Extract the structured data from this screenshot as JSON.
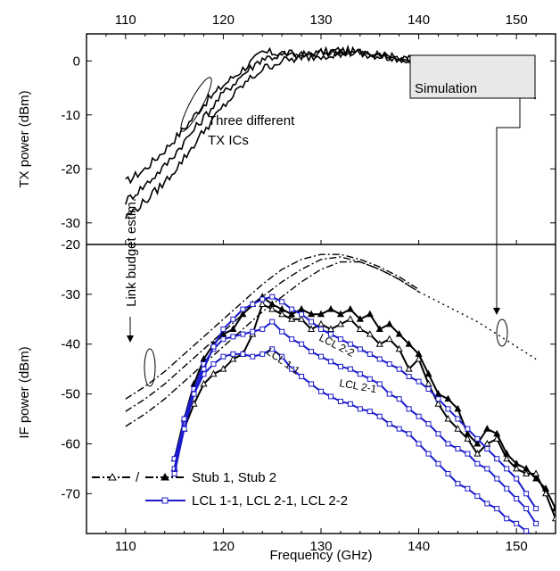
{
  "chart_data": [
    {
      "type": "line",
      "panel": "top",
      "ylabel": "TX power (dBm)",
      "xlim": [
        106,
        154
      ],
      "ylim": [
        -34,
        5
      ],
      "x_ticks": [
        "110",
        "120",
        "130",
        "140",
        "150"
      ],
      "y_ticks": [
        "0",
        "-10",
        "-20",
        "-30"
      ],
      "series": [
        {
          "x": [
            110,
            112,
            114,
            116,
            118,
            120,
            122,
            124,
            126,
            128,
            130,
            132,
            134,
            136,
            138,
            140
          ],
          "values": [
            -22.5,
            -20,
            -16.5,
            -12.5,
            -8,
            -4.5,
            -1.5,
            1.5,
            1.5,
            1,
            1.5,
            2,
            1.5,
            1,
            0.5,
            0
          ]
        },
        {
          "x": [
            110,
            112,
            114,
            116,
            118,
            120,
            122,
            124,
            126,
            128,
            130,
            132,
            134,
            136,
            138,
            140
          ],
          "values": [
            -26,
            -23,
            -19.5,
            -15,
            -10.5,
            -6,
            -2.5,
            0.5,
            1,
            1,
            1.5,
            1.5,
            1.5,
            1,
            0.5,
            0
          ]
        },
        {
          "x": [
            110,
            112,
            114,
            116,
            118,
            120,
            122,
            124,
            126,
            128,
            130,
            132,
            134,
            136,
            138,
            140
          ],
          "values": [
            -29,
            -26,
            -22.5,
            -18,
            -13,
            -8.5,
            -4.5,
            -1.5,
            0,
            0.5,
            1,
            1.5,
            1.5,
            1,
            0.5,
            0
          ]
        },
        {
          "style": "dashed",
          "x": [
            140,
            142,
            144,
            146,
            148,
            150,
            152
          ],
          "values": [
            0,
            -1,
            -2,
            -3,
            -4.3,
            -5.5,
            -7
          ]
        }
      ],
      "annotations": {
        "tx_ics_line1": "Three different",
        "tx_ics_line2": "TX ICs",
        "simulation": "Simulation"
      }
    },
    {
      "type": "line",
      "panel": "bottom",
      "xlabel": "Frequency (GHz)",
      "ylabel": "IF power (dBm)",
      "xlim": [
        106,
        154
      ],
      "ylim": [
        -78,
        -20
      ],
      "x_ticks": [
        "110",
        "120",
        "130",
        "140",
        "150"
      ],
      "y_ticks": [
        "-20",
        "-30",
        "-40",
        "-50",
        "-60",
        "-70"
      ],
      "link_budget": [
        {
          "x": [
            110,
            112,
            114,
            116,
            118,
            120,
            122,
            124,
            126,
            128,
            130,
            132,
            134,
            136,
            138,
            140
          ],
          "values": [
            -51,
            -48.5,
            -45.5,
            -42,
            -38.5,
            -35,
            -31.5,
            -28,
            -25,
            -23,
            -22,
            -22,
            -23,
            -24.5,
            -26.5,
            -29
          ]
        },
        {
          "x": [
            110,
            112,
            114,
            116,
            118,
            120,
            122,
            124,
            126,
            128,
            130,
            132,
            134,
            136,
            138,
            140
          ],
          "values": [
            -53.5,
            -51,
            -48,
            -44.5,
            -41,
            -37.5,
            -34,
            -30.5,
            -27.5,
            -25,
            -23,
            -22.5,
            -23.5,
            -25,
            -27,
            -29.5
          ]
        },
        {
          "x": [
            110,
            112,
            114,
            116,
            118,
            120,
            122,
            124,
            126,
            128,
            130,
            132,
            134,
            136,
            138,
            140
          ],
          "values": [
            -56.5,
            -54,
            -51,
            -47.5,
            -44,
            -40.5,
            -37,
            -33.5,
            -30.5,
            -27.5,
            -25,
            -23.5,
            -23.5,
            -25,
            -27,
            -29.5
          ]
        }
      ],
      "link_budget_sim": {
        "x": [
          140,
          142,
          144,
          146,
          148,
          150,
          152
        ],
        "values": [
          -29.5,
          -31.5,
          -33.5,
          -35.5,
          -38,
          -40.5,
          -43
        ]
      },
      "series": [
        {
          "name": "Stub 1, Stub 2",
          "marker": "triangle-open",
          "color": "#000000",
          "x": [
            115,
            116,
            117,
            118,
            119,
            120,
            121,
            122,
            123,
            124,
            125,
            126,
            127,
            128,
            129,
            130,
            131,
            132,
            133,
            134,
            135,
            136,
            137,
            138,
            139,
            140,
            141,
            142,
            143,
            144,
            145,
            146,
            147,
            148,
            149,
            150,
            151,
            152,
            153,
            154
          ],
          "values": [
            -65,
            -57,
            -52,
            -48,
            -46,
            -45,
            -43,
            -42,
            -38,
            -32,
            -33,
            -34,
            -35,
            -35,
            -37,
            -36,
            -37,
            -36,
            -35,
            -37,
            -38,
            -40,
            -39,
            -41,
            -45,
            -43,
            -48,
            -52,
            -55,
            -57,
            -59,
            -62,
            -60,
            -59,
            -63,
            -65,
            -66,
            -66,
            -70,
            -75
          ]
        },
        {
          "name": "Stub 1, Stub 2",
          "marker": "triangle-filled",
          "color": "#000000",
          "x": [
            115,
            116,
            117,
            118,
            119,
            120,
            121,
            122,
            123,
            124,
            125,
            126,
            127,
            128,
            129,
            130,
            131,
            132,
            133,
            134,
            135,
            136,
            137,
            138,
            139,
            140,
            141,
            142,
            143,
            144,
            145,
            146,
            147,
            148,
            149,
            150,
            151,
            152,
            153,
            154
          ],
          "values": [
            -63,
            -55,
            -48,
            -43,
            -40,
            -38,
            -37,
            -34,
            -32,
            -30.5,
            -32,
            -33,
            -34,
            -33,
            -34,
            -34,
            -33,
            -34,
            -33,
            -35,
            -34,
            -37,
            -36,
            -38,
            -40,
            -42,
            -46,
            -50,
            -51,
            -53,
            -58,
            -60,
            -57,
            -58,
            -62,
            -64,
            -65,
            -67,
            -69,
            -73
          ]
        },
        {
          "name": "LCL 1-1, LCL 2-1, LCL 2-2",
          "marker": "square-open",
          "color": "#1a1acc",
          "x": [
            115,
            116,
            117,
            118,
            119,
            120,
            121,
            122,
            123,
            124,
            125,
            126,
            127,
            128,
            129,
            130,
            131,
            132,
            133,
            134,
            135,
            136,
            137,
            138,
            139,
            140,
            141,
            142,
            143,
            144,
            145,
            146,
            147,
            148,
            149,
            150,
            151,
            152
          ],
          "values": [
            -63,
            -56,
            -50,
            -46,
            -44,
            -42.5,
            -42,
            -42,
            -42.5,
            -42,
            -41,
            -42.5,
            -45,
            -46.5,
            -48,
            -49.5,
            -50.5,
            -51.5,
            -52,
            -53,
            -53.5,
            -54.5,
            -56,
            -57,
            -58,
            -60,
            -62,
            -64,
            -66,
            -68,
            -69,
            -70.5,
            -72,
            -73,
            -75,
            -76,
            -77.5,
            -79
          ]
        },
        {
          "name": "LCL 1-1, LCL 2-1, LCL 2-2",
          "marker": "square-open",
          "color": "#1a1acc",
          "x": [
            115,
            116,
            117,
            118,
            119,
            120,
            121,
            122,
            123,
            124,
            125,
            126,
            127,
            128,
            129,
            130,
            131,
            132,
            133,
            134,
            135,
            136,
            137,
            138,
            139,
            140,
            141,
            142,
            143,
            144,
            145,
            146,
            147,
            148,
            149,
            150,
            151,
            152
          ],
          "values": [
            -65,
            -55,
            -49,
            -44,
            -41,
            -39,
            -38.5,
            -38,
            -37.5,
            -37,
            -35.5,
            -37.5,
            -39,
            -40,
            -41.5,
            -42.5,
            -43.5,
            -44.5,
            -45,
            -46,
            -47,
            -48,
            -50,
            -51,
            -53,
            -54.5,
            -56,
            -58,
            -60,
            -61,
            -62,
            -64,
            -65,
            -67,
            -69,
            -71,
            -73,
            -76
          ]
        },
        {
          "name": "LCL 1-1, LCL 2-1, LCL 2-2",
          "marker": "square-open",
          "color": "#1a1acc",
          "x": [
            115,
            116,
            117,
            118,
            119,
            120,
            121,
            122,
            123,
            124,
            125,
            126,
            127,
            128,
            129,
            130,
            131,
            132,
            133,
            134,
            135,
            136,
            137,
            138,
            139,
            140,
            141,
            142,
            143,
            144,
            145,
            146,
            147,
            148,
            149,
            150,
            151,
            152
          ],
          "values": [
            -66,
            -57,
            -50,
            -45,
            -40.5,
            -37,
            -35,
            -33,
            -32,
            -31,
            -30.5,
            -31.5,
            -33,
            -34,
            -35.5,
            -37,
            -38,
            -39,
            -40,
            -41,
            -42,
            -43,
            -44,
            -45,
            -46.5,
            -47.5,
            -49,
            -51,
            -53,
            -55,
            -57,
            -59,
            -61,
            -63,
            -65,
            -67,
            -70,
            -73
          ]
        }
      ],
      "labels": {
        "lcl11": "LCL 1-1",
        "lcl21": "LCL 2-1",
        "lcl22": "LCL 2-2",
        "link_budget": "Link budget estim."
      },
      "legend": {
        "placement": "bottom-left",
        "stub_label": "Stub 1, Stub 2",
        "lcl_label": "LCL 1-1, LCL 2-1, LCL 2-2",
        "stub_separator": "/"
      }
    }
  ]
}
